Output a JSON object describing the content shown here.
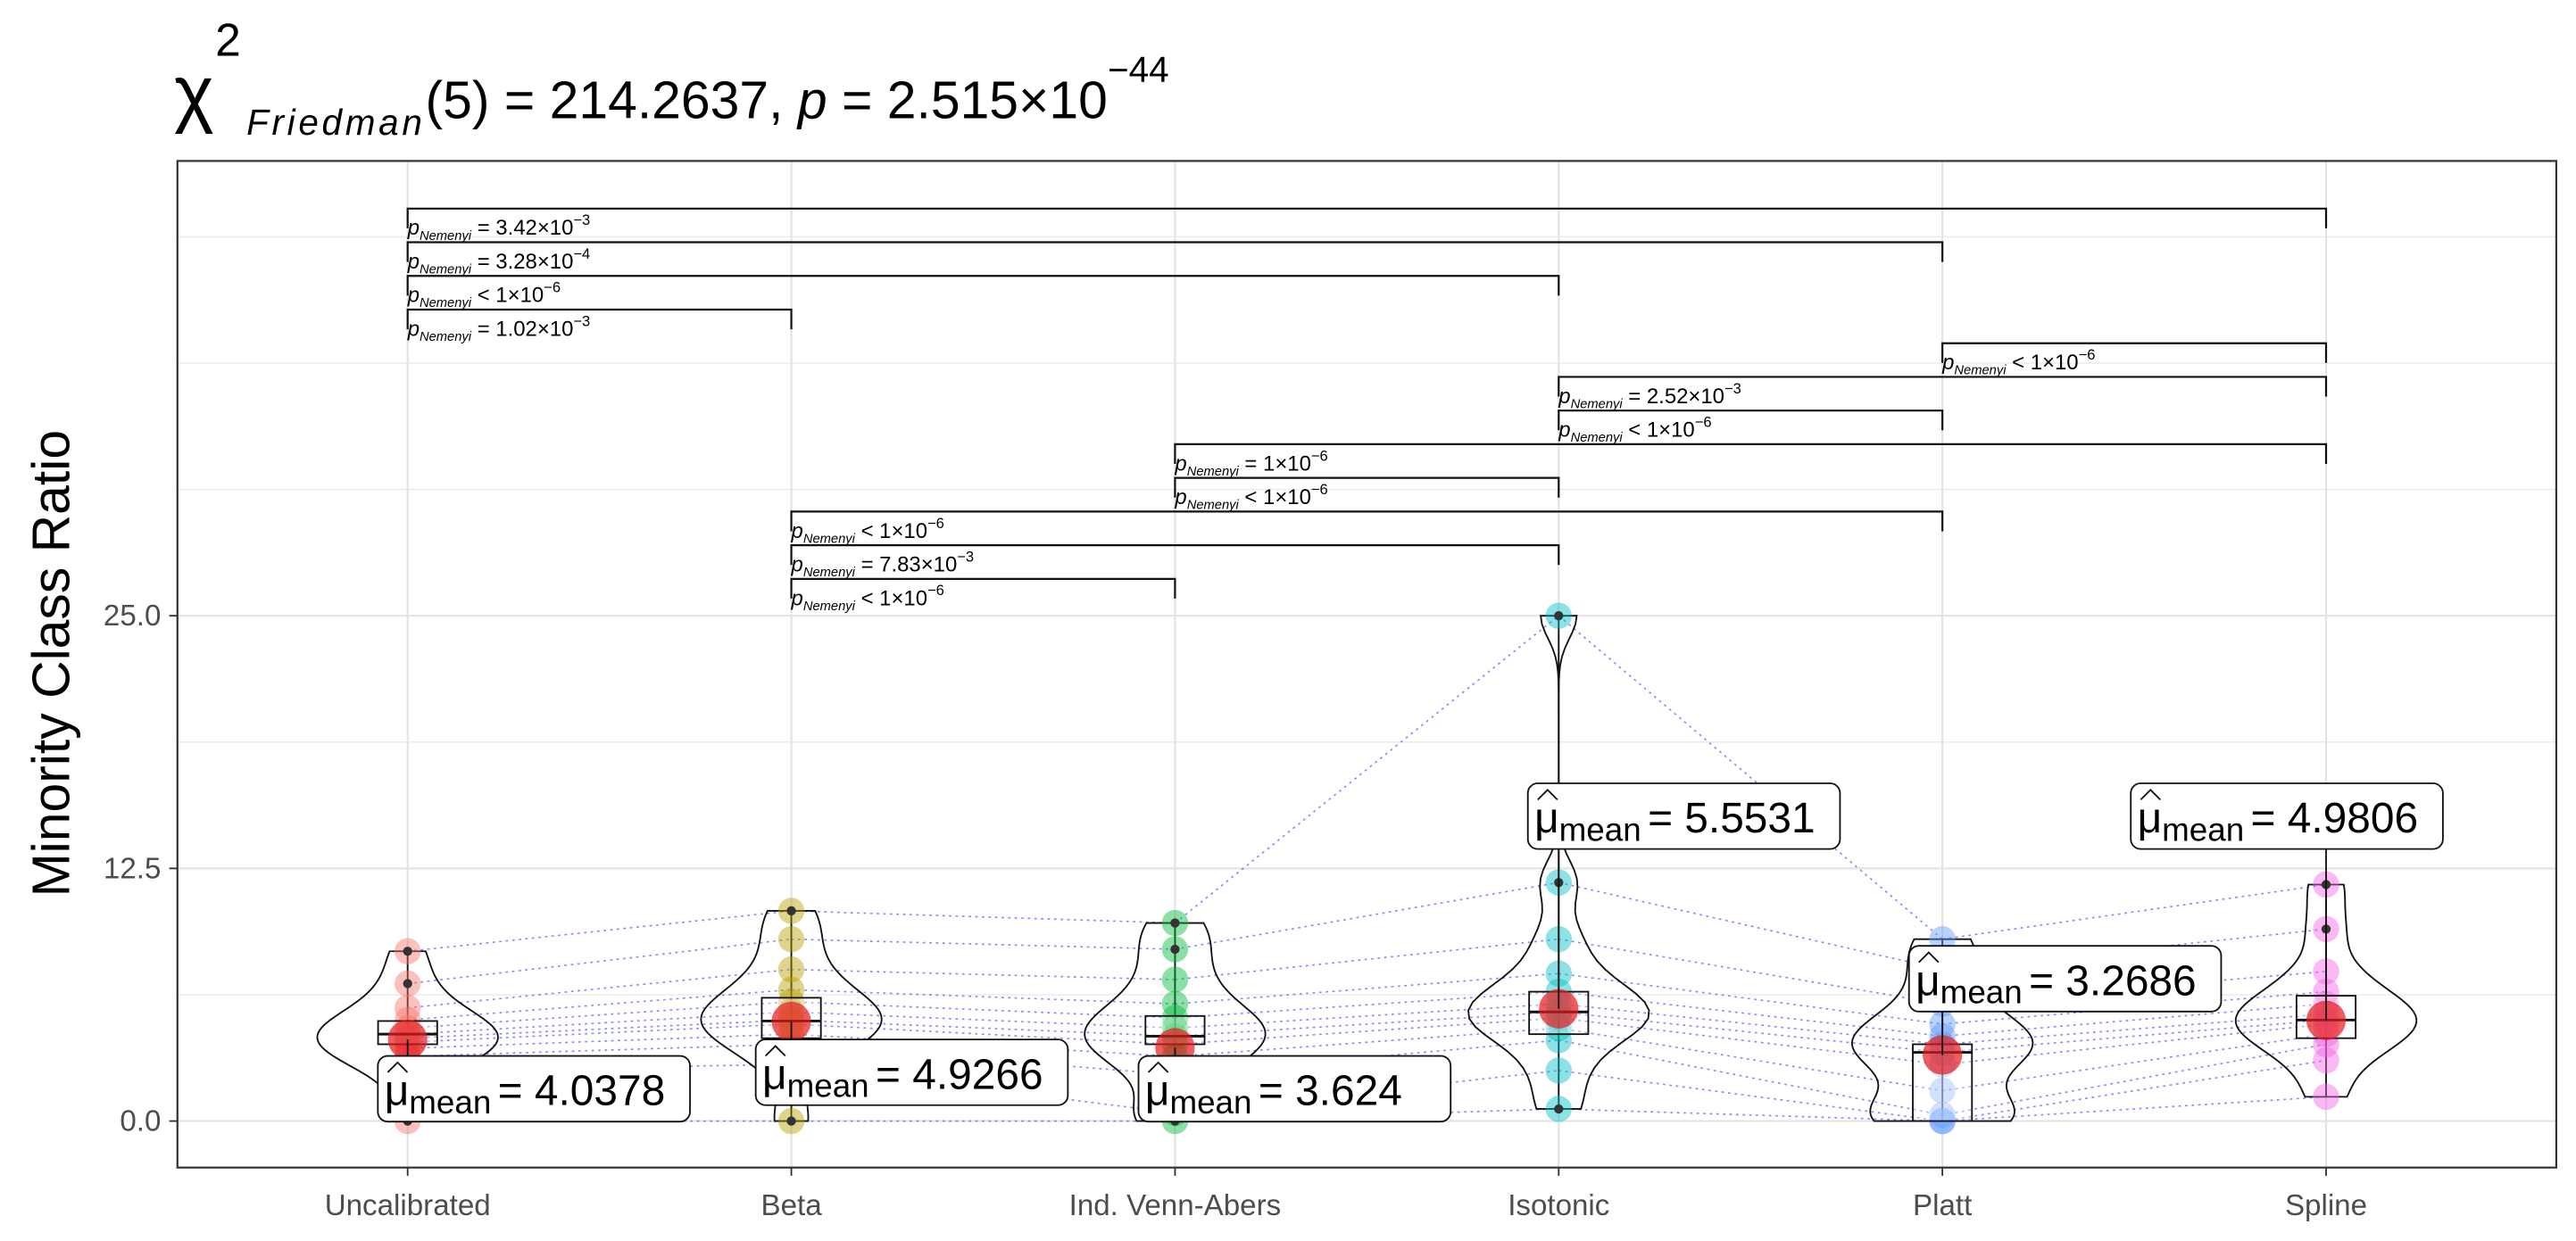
{
  "chart_data": {
    "type": "violin",
    "title": {
      "symbol": "χ",
      "superscript": "2",
      "subscript": "Friedman",
      "statistic": "(5) = 214.2637, ",
      "p_symbol": "p",
      "p_text": " = 2.515×10",
      "p_exponent": "−44"
    },
    "y_label": "Minority Class Ratio",
    "ylim": [
      -2.3,
      47.5
    ],
    "yticks": [
      {
        "value": 0,
        "label": "0.0"
      },
      12.5,
      {
        "value": 25,
        "label": "25.0"
      }
    ],
    "minor_yticks": [
      6.25,
      18.75,
      31.25,
      37.5,
      43.75
    ],
    "grid": true,
    "categories": [
      "Uncalibrated",
      "Beta",
      "Ind. Venn-Abers",
      "Isotonic",
      "Platt",
      "Spline"
    ],
    "series": [
      {
        "name": "Uncalibrated",
        "color": "#f8766d",
        "values": [
          0,
          2.5,
          3.2,
          3.6,
          3.9,
          4.1,
          4.3,
          4.6,
          5.0,
          5.6,
          6.8,
          8.4
        ],
        "box": {
          "q1": 3.8,
          "median": 4.3,
          "q3": 4.95
        },
        "mean": 4.0378,
        "mean_label": "= 4.0378"
      },
      {
        "name": "Beta",
        "color": "#b79f00",
        "values": [
          0,
          2.8,
          3.8,
          4.3,
          4.8,
          5.0,
          5.4,
          5.9,
          6.5,
          7.5,
          9.0,
          10.4
        ],
        "box": {
          "q1": 4.1,
          "median": 4.95,
          "q3": 6.1
        },
        "mean": 4.9266,
        "mean_label": "= 4.9266"
      },
      {
        "name": "Ind. Venn-Abers",
        "color": "#00ba38",
        "values": [
          0,
          0.4,
          2.3,
          3.2,
          3.8,
          4.2,
          4.6,
          5.1,
          5.8,
          7.0,
          8.5,
          9.8
        ],
        "box": {
          "q1": 3.8,
          "median": 4.2,
          "q3": 5.2
        },
        "mean": 3.624,
        "mean_label": "= 3.624"
      },
      {
        "name": "Isotonic",
        "color": "#00bfc4",
        "values": [
          0.6,
          2.5,
          4.0,
          4.6,
          5.1,
          5.4,
          5.8,
          6.4,
          7.3,
          9.0,
          11.8,
          25
        ],
        "box": {
          "q1": 4.3,
          "median": 5.4,
          "q3": 6.4
        },
        "mean": 5.5531,
        "mean_label": "= 5.5531"
      },
      {
        "name": "Platt",
        "color": "#619cff",
        "values": [
          0,
          0,
          0.3,
          1.5,
          2.8,
          3.4,
          3.8,
          4.2,
          4.8,
          5.8,
          7.5,
          9.0
        ],
        "box": {
          "q1": 0,
          "median": 3.4,
          "q3": 3.8
        },
        "mean": 3.2686,
        "mean_label": "= 3.2686"
      },
      {
        "name": "Spline",
        "color": "#f564e3",
        "values": [
          1.2,
          3.0,
          3.8,
          4.3,
          4.8,
          5.0,
          5.3,
          5.8,
          6.4,
          7.4,
          9.5,
          11.7
        ],
        "box": {
          "q1": 4.1,
          "median": 5.0,
          "q3": 6.2
        },
        "mean": 4.9806,
        "mean_label": "= 4.9806"
      }
    ],
    "mean_symbol": "μ",
    "mean_subscript": "mean",
    "pair_line_color": "#3b3bff",
    "comparison_symbol": "p",
    "comparison_subscript": "Nemenyi",
    "comparisons": [
      {
        "groups": [
          "Uncalibrated",
          "Spline"
        ],
        "text": " = 3.42×10",
        "exponent": "−3"
      },
      {
        "groups": [
          "Uncalibrated",
          "Platt"
        ],
        "text": " = 3.28×10",
        "exponent": "−4"
      },
      {
        "groups": [
          "Uncalibrated",
          "Isotonic"
        ],
        "text": " < 1×10",
        "exponent": "−6"
      },
      {
        "groups": [
          "Uncalibrated",
          "Beta"
        ],
        "text": " = 1.02×10",
        "exponent": "−3"
      },
      {
        "groups": [
          "Platt",
          "Spline"
        ],
        "text": " < 1×10",
        "exponent": "−6"
      },
      {
        "groups": [
          "Isotonic",
          "Spline"
        ],
        "text": " = 2.52×10",
        "exponent": "−3"
      },
      {
        "groups": [
          "Isotonic",
          "Platt"
        ],
        "text": " < 1×10",
        "exponent": "−6"
      },
      {
        "groups": [
          "Ind. Venn-Abers",
          "Spline"
        ],
        "text": " = 1×10",
        "exponent": "−6"
      },
      {
        "groups": [
          "Ind. Venn-Abers",
          "Isotonic"
        ],
        "text": " < 1×10",
        "exponent": "−6"
      },
      {
        "groups": [
          "Beta",
          "Platt"
        ],
        "text": " < 1×10",
        "exponent": "−6"
      },
      {
        "groups": [
          "Beta",
          "Isotonic"
        ],
        "text": " = 7.83×10",
        "exponent": "−3"
      },
      {
        "groups": [
          "Beta",
          "Ind. Venn-Abers"
        ],
        "text": " < 1×10",
        "exponent": "−6"
      }
    ]
  }
}
